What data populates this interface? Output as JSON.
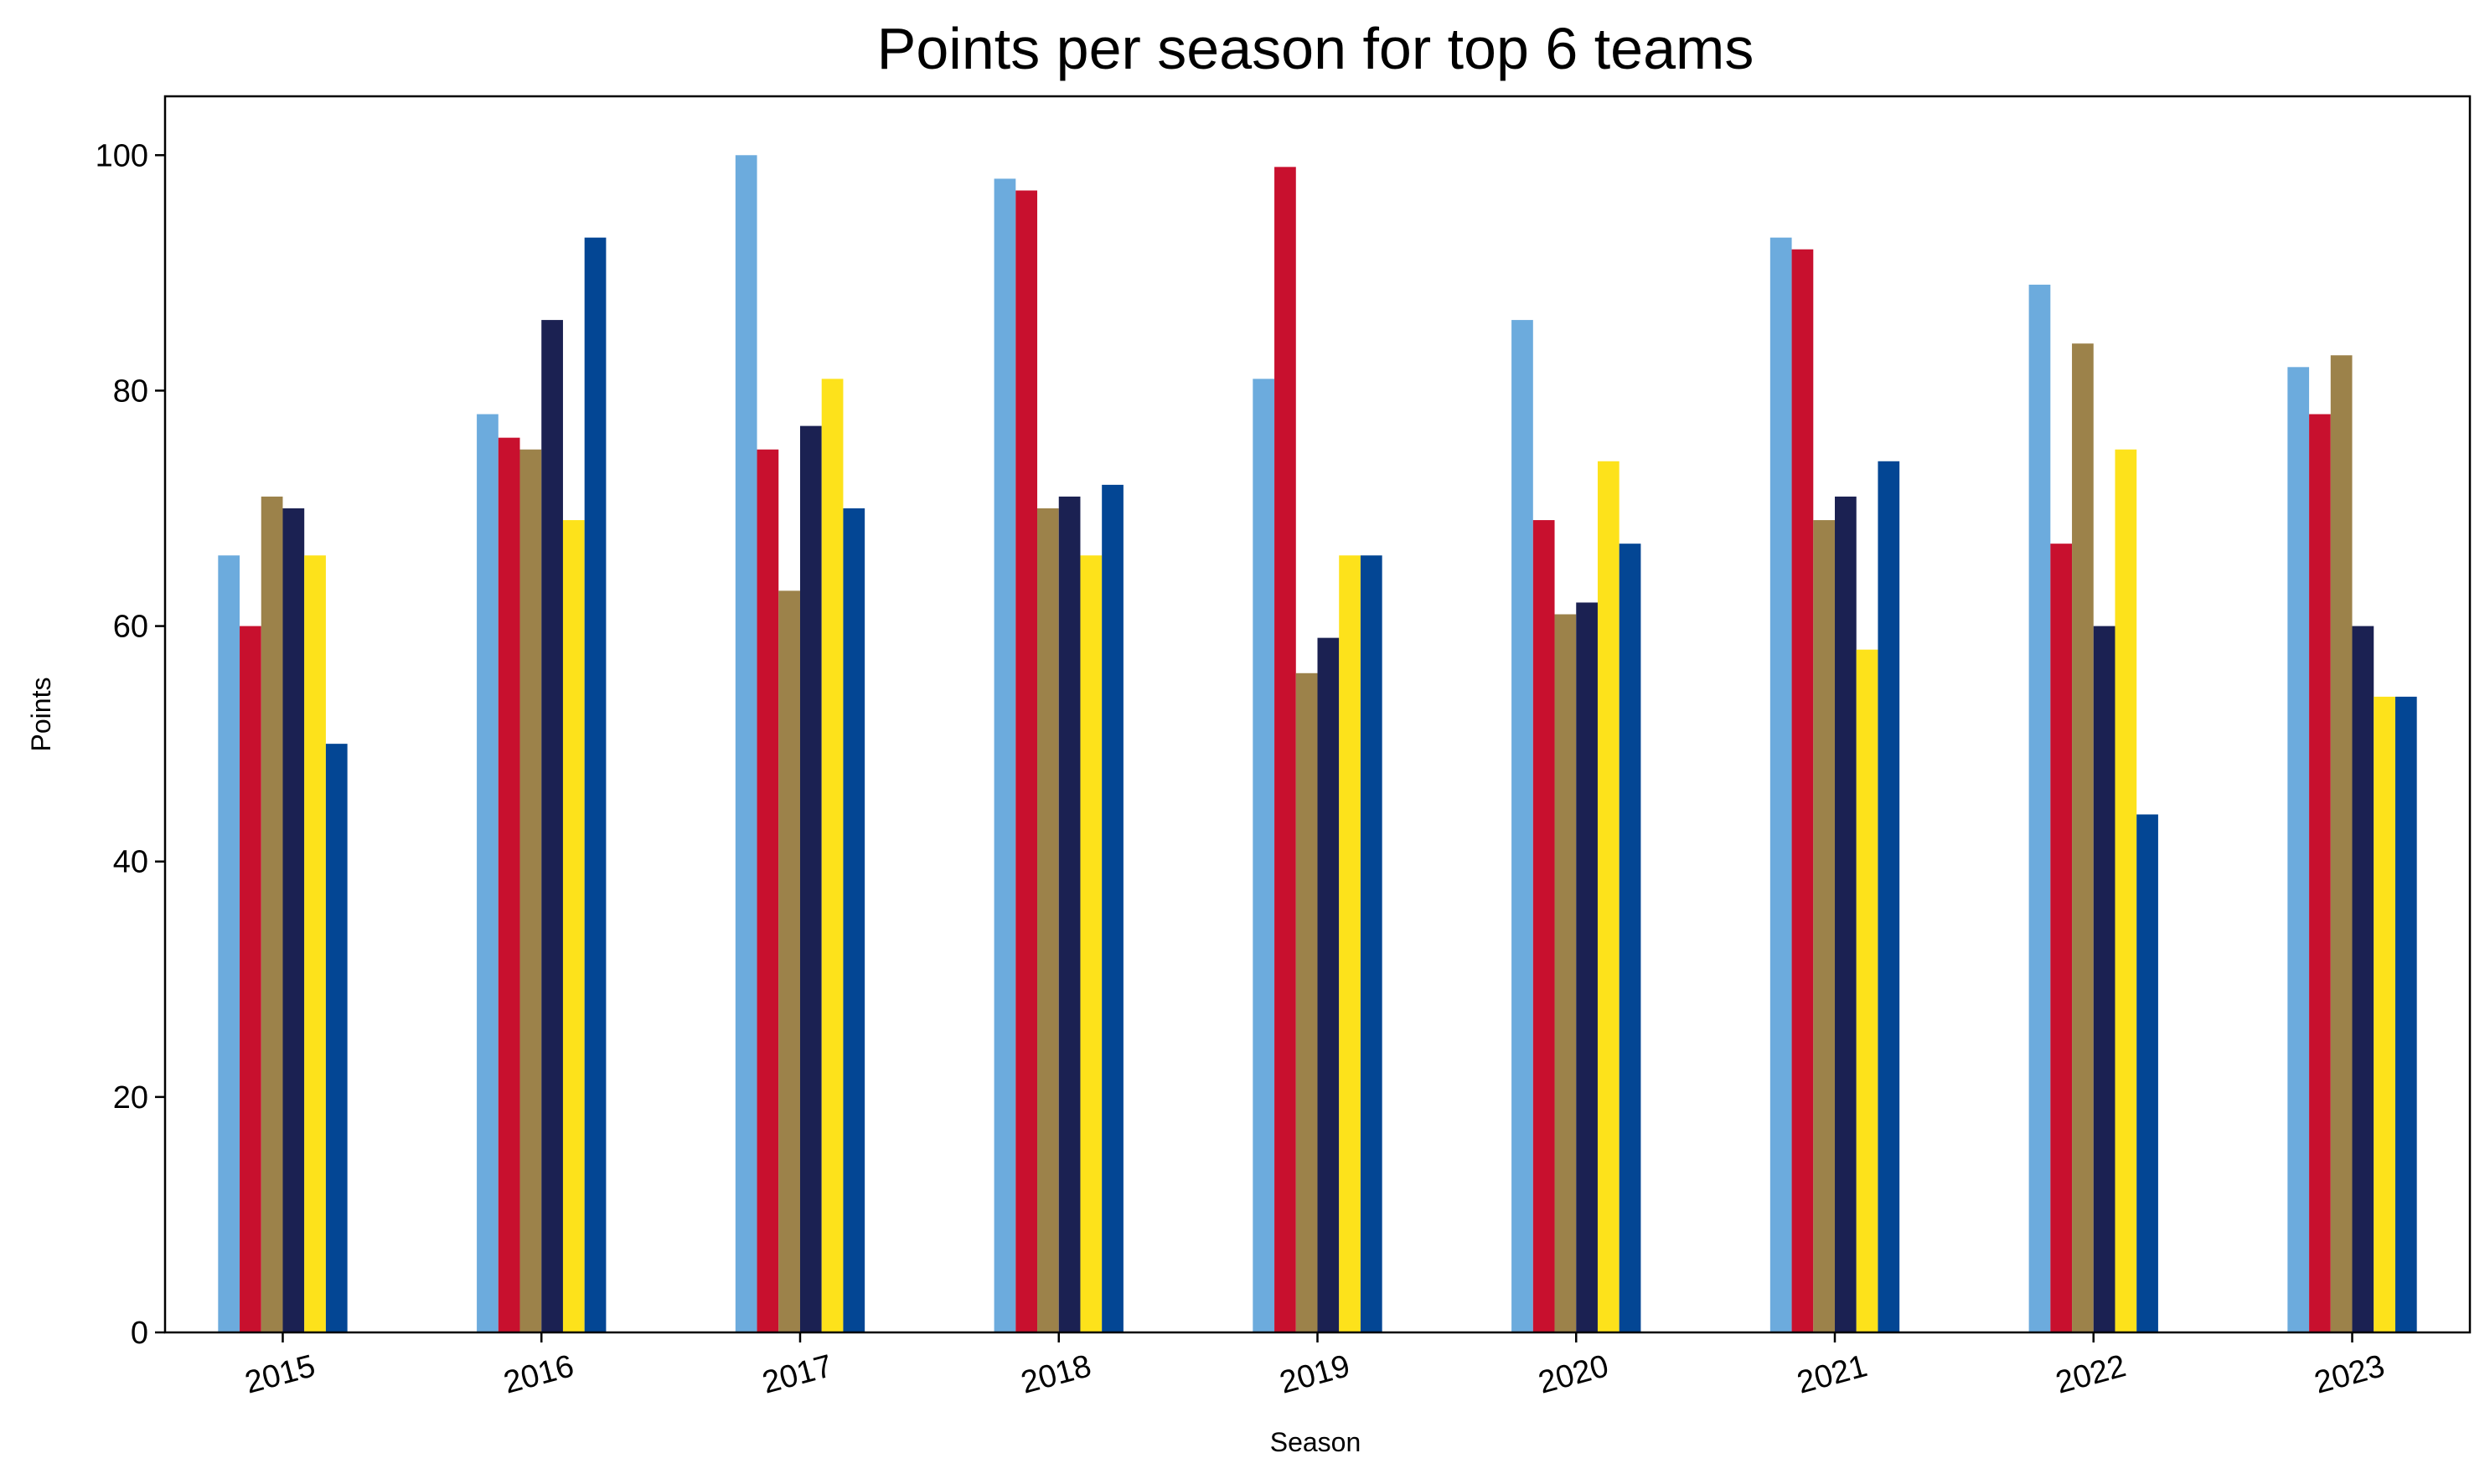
{
  "chart_data": {
    "type": "bar",
    "title": "Points per season for top 6 teams",
    "xlabel": "Season",
    "ylabel": "Points",
    "ylim": [
      0,
      105
    ],
    "yticks": [
      0,
      20,
      40,
      60,
      80,
      100
    ],
    "categories": [
      "2015",
      "2016",
      "2017",
      "2018",
      "2019",
      "2020",
      "2021",
      "2022",
      "2023"
    ],
    "grid": false,
    "legend": "none",
    "series": [
      {
        "color": "#6CABDD",
        "values": [
          66,
          78,
          100,
          98,
          81,
          86,
          93,
          89,
          82
        ]
      },
      {
        "color": "#C8102E",
        "values": [
          60,
          76,
          75,
          97,
          99,
          69,
          92,
          67,
          78
        ]
      },
      {
        "color": "#9C824A",
        "values": [
          71,
          75,
          63,
          70,
          56,
          61,
          69,
          84,
          83
        ]
      },
      {
        "color": "#1B2152",
        "values": [
          70,
          86,
          77,
          71,
          59,
          62,
          71,
          60,
          60
        ]
      },
      {
        "color": "#FDE21B",
        "values": [
          66,
          69,
          81,
          66,
          66,
          74,
          58,
          75,
          54
        ]
      },
      {
        "color": "#034694",
        "values": [
          50,
          93,
          70,
          72,
          66,
          67,
          74,
          44,
          54
        ]
      }
    ]
  }
}
